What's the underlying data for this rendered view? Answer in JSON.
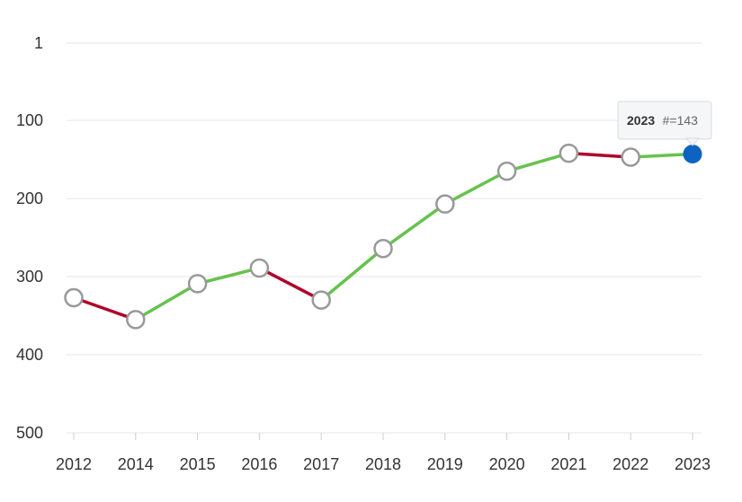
{
  "chart_data": {
    "type": "line",
    "y_inverted": true,
    "ylim": [
      1,
      500
    ],
    "y_ticks": [
      "1",
      "100",
      "200",
      "300",
      "400",
      "500"
    ],
    "categories": [
      "2012",
      "2014",
      "2015",
      "2016",
      "2017",
      "2018",
      "2019",
      "2020",
      "2021",
      "2022",
      "2023"
    ],
    "values": [
      327,
      355,
      309,
      289,
      330,
      264,
      207,
      165,
      142,
      147,
      143
    ],
    "colors": {
      "improve": "#66c24e",
      "decline": "#b0002a",
      "marker_fill": "#ffffff",
      "marker_stroke": "#999999",
      "highlight": "#0f63c0"
    },
    "tooltip": {
      "year": "2023",
      "rank_text": "#=143"
    }
  }
}
